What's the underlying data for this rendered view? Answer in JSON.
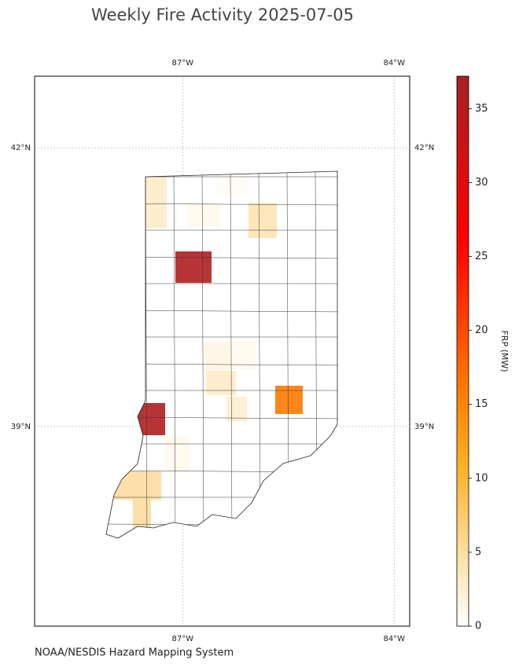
{
  "title": "Weekly Fire Activity 2025-07-05",
  "source": "NOAA/NESDIS Hazard Mapping System",
  "map": {
    "lonlim": [
      -89.1,
      -83.78
    ],
    "latlim": [
      36.85,
      42.77
    ],
    "lon_ticks": [
      {
        "value": -87,
        "label": "87°W"
      },
      {
        "value": -84,
        "label": "84°W"
      }
    ],
    "lat_ticks": [
      {
        "value": 42,
        "label": "42°N"
      },
      {
        "value": 39,
        "label": "39°N"
      }
    ],
    "county_frp": [
      3,
      1,
      0.5,
      4,
      36,
      1.5,
      1,
      3,
      2.5,
      16,
      36,
      1,
      5,
      5
    ]
  },
  "colorbar": {
    "label": "FRP (MW)",
    "lim": [
      0,
      37.2
    ],
    "ticks": [
      0,
      5,
      10,
      15,
      20,
      25,
      30,
      35
    ]
  }
}
